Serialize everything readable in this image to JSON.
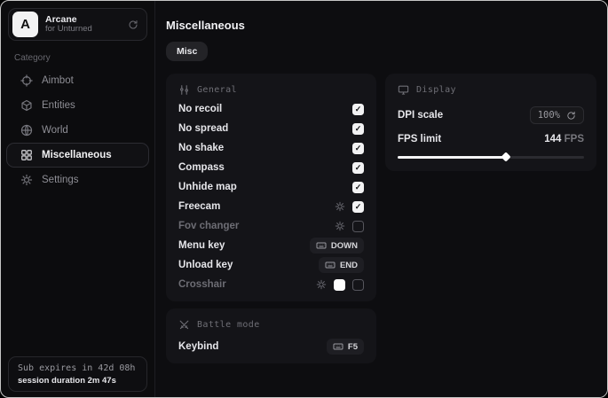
{
  "sidebar": {
    "app": {
      "logo_letter": "A",
      "name": "Arcane",
      "subtitle": "for Unturned"
    },
    "category_label": "Category",
    "items": [
      {
        "label": "Aimbot",
        "icon": "crosshair-icon",
        "selected": false
      },
      {
        "label": "Entities",
        "icon": "cube-icon",
        "selected": false
      },
      {
        "label": "World",
        "icon": "globe-icon",
        "selected": false
      },
      {
        "label": "Miscellaneous",
        "icon": "grid-icon",
        "selected": true
      },
      {
        "label": "Settings",
        "icon": "gear-icon",
        "selected": false
      }
    ],
    "footer": {
      "sub_expires": "Sub expires in 42d 08h",
      "session_duration": "session duration 2m 47s"
    }
  },
  "main": {
    "title": "Miscellaneous",
    "tabs": [
      {
        "label": "Misc"
      }
    ],
    "panels": {
      "general": {
        "title": "General",
        "rows": [
          {
            "label": "No recoil",
            "type": "checkbox",
            "checked": true
          },
          {
            "label": "No spread",
            "type": "checkbox",
            "checked": true
          },
          {
            "label": "No shake",
            "type": "checkbox",
            "checked": true
          },
          {
            "label": "Compass",
            "type": "checkbox",
            "checked": true
          },
          {
            "label": "Unhide map",
            "type": "checkbox",
            "checked": true
          },
          {
            "label": "Freecam",
            "type": "checkbox",
            "checked": true,
            "has_settings": true
          },
          {
            "label": "Fov changer",
            "type": "checkbox",
            "checked": false,
            "has_settings": true
          },
          {
            "label": "Menu key",
            "type": "keybind",
            "value": "DOWN"
          },
          {
            "label": "Unload key",
            "type": "keybind",
            "value": "END"
          },
          {
            "label": "Crosshair",
            "type": "checkbox-color",
            "checked": false,
            "has_settings": true,
            "color": "#ffffff"
          }
        ],
        "check_glyph": "✓"
      },
      "display": {
        "title": "Display",
        "dpi": {
          "label": "DPI scale",
          "value": "100%"
        },
        "fps": {
          "label": "FPS limit",
          "value": "144",
          "unit": " FPS",
          "slider_percent": 58
        }
      },
      "battle": {
        "title": "Battle mode",
        "keybind": {
          "label": "Keybind",
          "value": "F5"
        }
      }
    }
  },
  "colors": {
    "checkbox_fill": "#f2f2f3",
    "crosshair_swatch": "#ffffff",
    "slider_fill": "#f4f4f6"
  }
}
